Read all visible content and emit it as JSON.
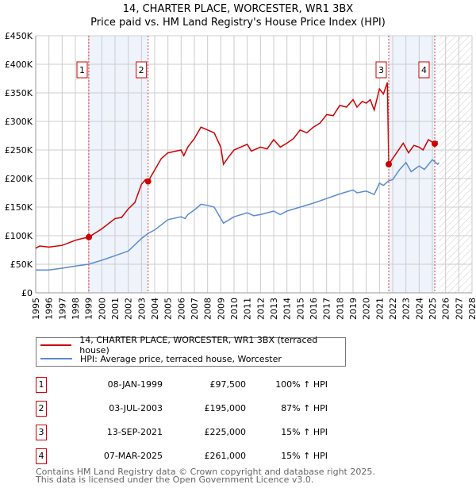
{
  "title_line1": "14, CHARTER PLACE, WORCESTER, WR1 3BX",
  "title_line2": "Price paid vs. HM Land Registry's House Price Index (HPI)",
  "colors": {
    "property": "#cc0000",
    "hpi": "#5b8bd0",
    "shade": "#eef3fc",
    "marker": "#cc0000"
  },
  "chart_data": {
    "type": "line",
    "xlim": [
      1995,
      2028
    ],
    "ylim": [
      0,
      450000
    ],
    "yticks": [
      0,
      50000,
      100000,
      150000,
      200000,
      250000,
      300000,
      350000,
      400000,
      450000
    ],
    "ytick_labels": [
      "£0",
      "£50K",
      "£100K",
      "£150K",
      "£200K",
      "£250K",
      "£300K",
      "£350K",
      "£400K",
      "£450K"
    ],
    "xticks": [
      1995,
      1996,
      1997,
      1998,
      1999,
      2000,
      2001,
      2002,
      2003,
      2004,
      2005,
      2006,
      2007,
      2008,
      2009,
      2010,
      2011,
      2012,
      2013,
      2014,
      2015,
      2016,
      2017,
      2018,
      2019,
      2020,
      2021,
      2022,
      2023,
      2024,
      2025,
      2026,
      2027,
      2028
    ],
    "grid": true,
    "shaded_ranges": [
      [
        1999.02,
        2003.5
      ],
      [
        2021.7,
        2025.18
      ]
    ],
    "forecast_hatch_from": 2025.5,
    "series": [
      {
        "name": "14, CHARTER PLACE, WORCESTER, WR1 3BX (terraced house)",
        "x": [
          1995,
          1995.3,
          1996,
          1997,
          1998,
          1998.5,
          1999.02,
          2000,
          2001,
          2001.5,
          2002,
          2002.5,
          2003,
          2003.3,
          2003.5,
          2004,
          2004.5,
          2005,
          2006,
          2006.2,
          2006.5,
          2007,
          2007.5,
          2008,
          2008.5,
          2009,
          2009.2,
          2009.6,
          2010,
          2011,
          2011.3,
          2012,
          2012.5,
          2013,
          2013.5,
          2014,
          2014.5,
          2015,
          2015.5,
          2016,
          2016.5,
          2017,
          2017.5,
          2018,
          2018.5,
          2019,
          2019.3,
          2019.7,
          2020,
          2020.3,
          2020.6,
          2021,
          2021.3,
          2021.6,
          2021.7,
          2022,
          2022.8,
          2023.2,
          2023.6,
          2024,
          2024.3,
          2024.7,
          2025.18,
          2025.4
        ],
        "y": [
          78000,
          82000,
          80000,
          83000,
          92000,
          95000,
          97500,
          112000,
          130000,
          132000,
          147000,
          158000,
          190000,
          198000,
          195000,
          215000,
          235000,
          245000,
          250000,
          240000,
          255000,
          270000,
          290000,
          285000,
          280000,
          255000,
          225000,
          238000,
          250000,
          260000,
          248000,
          255000,
          252000,
          268000,
          255000,
          262000,
          270000,
          285000,
          280000,
          290000,
          297000,
          312000,
          310000,
          328000,
          325000,
          338000,
          325000,
          335000,
          332000,
          338000,
          320000,
          357000,
          348000,
          368000,
          225000,
          235000,
          262000,
          245000,
          258000,
          255000,
          250000,
          268000,
          261000,
          265000
        ]
      },
      {
        "name": "HPI: Average price, terraced house, Worcester",
        "x": [
          1995,
          1996,
          1997,
          1998,
          1999,
          2000,
          2001,
          2002,
          2003,
          2003.5,
          2004,
          2005,
          2006,
          2006.3,
          2006.5,
          2007,
          2007.5,
          2008,
          2008.5,
          2009,
          2009.2,
          2010,
          2011,
          2011.5,
          2012,
          2013,
          2013.5,
          2014,
          2015,
          2016,
          2017,
          2018,
          2019,
          2019.3,
          2020,
          2020.6,
          2021,
          2021.3,
          2021.7,
          2022,
          2022.5,
          2023,
          2023.4,
          2024,
          2024.4,
          2025,
          2025.4,
          2025.5
        ],
        "y": [
          40000,
          40000,
          43000,
          47000,
          50000,
          57000,
          65000,
          73000,
          95000,
          104000,
          110000,
          128000,
          133000,
          130000,
          137000,
          145000,
          155000,
          153000,
          150000,
          130000,
          122000,
          133000,
          140000,
          135000,
          137000,
          143000,
          137000,
          143000,
          150000,
          157000,
          165000,
          173000,
          180000,
          175000,
          178000,
          172000,
          192000,
          188000,
          196000,
          198000,
          215000,
          228000,
          212000,
          222000,
          216000,
          233000,
          225000,
          228000
        ]
      }
    ],
    "sales": [
      {
        "label": "1",
        "x": 1999.02,
        "price": 97500
      },
      {
        "label": "2",
        "x": 2003.5,
        "price": 195000
      },
      {
        "label": "3",
        "x": 2021.7,
        "price": 225000
      },
      {
        "label": "4",
        "x": 2025.18,
        "price": 261000
      }
    ]
  },
  "legend": {
    "property": "14, CHARTER PLACE, WORCESTER, WR1 3BX (terraced house)",
    "hpi": "HPI: Average price, terraced house, Worcester"
  },
  "transactions": [
    {
      "num": "1",
      "date": "08-JAN-1999",
      "price": "£97,500",
      "hpi": "100% ↑ HPI"
    },
    {
      "num": "2",
      "date": "03-JUL-2003",
      "price": "£195,000",
      "hpi": "87% ↑ HPI"
    },
    {
      "num": "3",
      "date": "13-SEP-2021",
      "price": "£225,000",
      "hpi": "15% ↑ HPI"
    },
    {
      "num": "4",
      "date": "07-MAR-2025",
      "price": "£261,000",
      "hpi": "15% ↑ HPI"
    }
  ],
  "footer": {
    "line1": "Contains HM Land Registry data © Crown copyright and database right 2025.",
    "line2": "This data is licensed under the Open Government Licence v3.0."
  }
}
